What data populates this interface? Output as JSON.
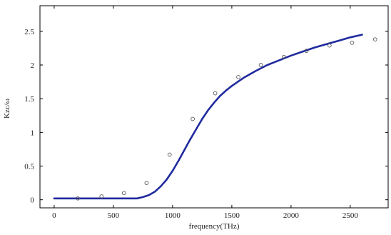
{
  "chart_data": {
    "type": "line",
    "xlabel": "frequency(THz)",
    "ylabel": "Kzc/ω",
    "xlim": [
      -120,
      2820
    ],
    "ylim": [
      -0.12,
      2.88
    ],
    "x_ticks": [
      0,
      500,
      1000,
      1500,
      2000,
      2500
    ],
    "y_ticks": [
      0,
      0.5,
      1,
      1.5,
      2,
      2.5
    ],
    "x_tick_labels": [
      "0",
      "500",
      "1000",
      "1500",
      "2000",
      "2500"
    ],
    "y_tick_labels": [
      "0",
      "0.5",
      "1",
      "1.5",
      "2",
      "2.5"
    ],
    "grid": false,
    "series": [
      {
        "style": "line",
        "color": "#1f2a9e",
        "x": [
          0,
          200,
          400,
          600,
          700,
          750,
          800,
          850,
          900,
          950,
          1000,
          1050,
          1100,
          1150,
          1200,
          1250,
          1300,
          1350,
          1400,
          1450,
          1500,
          1550,
          1600,
          1700,
          1800,
          1900,
          2000,
          2100,
          2200,
          2300,
          2400,
          2500,
          2600
        ],
        "y": [
          0.02,
          0.02,
          0.02,
          0.02,
          0.02,
          0.04,
          0.07,
          0.12,
          0.2,
          0.3,
          0.43,
          0.58,
          0.74,
          0.9,
          1.05,
          1.2,
          1.33,
          1.44,
          1.54,
          1.62,
          1.69,
          1.75,
          1.81,
          1.91,
          2.0,
          2.07,
          2.14,
          2.2,
          2.26,
          2.31,
          2.36,
          2.41,
          2.45
        ]
      },
      {
        "style": "scatter",
        "color": "#555555",
        "x": [
          200,
          400,
          590,
          780,
          975,
          1170,
          1360,
          1555,
          1745,
          1940,
          2130,
          2325,
          2515,
          2710
        ],
        "y": [
          0.02,
          0.05,
          0.1,
          0.25,
          0.67,
          1.2,
          1.58,
          1.82,
          2.0,
          2.12,
          2.21,
          2.29,
          2.33,
          2.38
        ]
      }
    ]
  }
}
